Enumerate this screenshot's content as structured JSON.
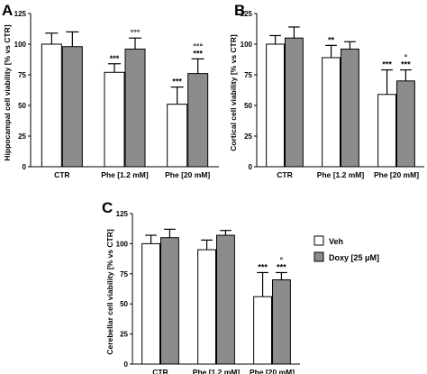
{
  "colors": {
    "veh": "#ffffff",
    "doxy": "#8c8c8c",
    "axis": "#000000"
  },
  "legend": {
    "entries": [
      {
        "label": "Veh",
        "color": "#ffffff"
      },
      {
        "label": "Doxy [25 μM]",
        "color": "#8c8c8c"
      }
    ]
  },
  "chart_data": [
    {
      "type": "bar",
      "panel": "A",
      "ylabel": "Hippocampal cell viability [% vs CTR]",
      "ylim": [
        0,
        125
      ],
      "yticks": [
        "0",
        "25",
        "50",
        "75",
        "100",
        "125"
      ],
      "categories": [
        "CTR",
        "Phe [1.2 mM]",
        "Phe [20 mM]"
      ],
      "series": [
        {
          "name": "Veh",
          "values": [
            100,
            77,
            51
          ],
          "errors": [
            9,
            7,
            14
          ],
          "annotations": [
            "",
            "***",
            "***"
          ]
        },
        {
          "name": "Doxy [25 μM]",
          "values": [
            98,
            96,
            76
          ],
          "errors": [
            12,
            9,
            12
          ],
          "annotations": [
            "",
            "°°°",
            "°°°\n***"
          ]
        }
      ]
    },
    {
      "type": "bar",
      "panel": "B",
      "ylabel": "Cortical cell viability [% vs CTR]",
      "ylim": [
        0,
        125
      ],
      "yticks": [
        "0",
        "25",
        "50",
        "75",
        "100",
        "125"
      ],
      "categories": [
        "CTR",
        "Phe [1.2 mM]",
        "Phe [20 mM]"
      ],
      "series": [
        {
          "name": "Veh",
          "values": [
            100,
            89,
            59
          ],
          "errors": [
            7,
            10,
            20
          ],
          "annotations": [
            "",
            "**",
            "***"
          ]
        },
        {
          "name": "Doxy [25 μM]",
          "values": [
            105,
            96,
            70
          ],
          "errors": [
            9,
            6,
            9
          ],
          "annotations": [
            "",
            "",
            "°\n***"
          ]
        }
      ]
    },
    {
      "type": "bar",
      "panel": "C",
      "ylabel": "Cerebellar cell viability [% vs CTR]",
      "ylim": [
        0,
        125
      ],
      "yticks": [
        "0",
        "25",
        "50",
        "75",
        "100",
        "125"
      ],
      "categories": [
        "CTR",
        "Phe [1.2 mM]",
        "Phe [20 mM]"
      ],
      "series": [
        {
          "name": "Veh",
          "values": [
            100,
            95,
            56
          ],
          "errors": [
            7,
            8,
            20
          ],
          "annotations": [
            "",
            "",
            "***"
          ]
        },
        {
          "name": "Doxy [25 μM]",
          "values": [
            105,
            107,
            70
          ],
          "errors": [
            7,
            4,
            6
          ],
          "annotations": [
            "",
            "",
            "°\n***"
          ]
        }
      ]
    }
  ]
}
